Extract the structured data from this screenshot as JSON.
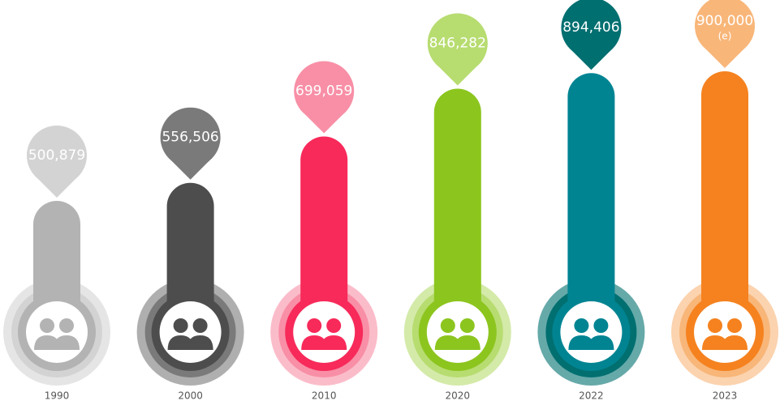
{
  "chart_data": {
    "type": "bar",
    "categories": [
      "1990",
      "2000",
      "2010",
      "2020",
      "2022",
      "2023"
    ],
    "values": [
      500879,
      556506,
      699059,
      846282,
      894406,
      900000
    ],
    "value_labels": [
      "500,879",
      "556,506",
      "699,059",
      "846,282",
      "894,406",
      "900,000"
    ],
    "notes": [
      null,
      null,
      null,
      null,
      null,
      "(e)"
    ],
    "colors": [
      "#b3b3b3",
      "#4d4d4d",
      "#f72a5a",
      "#8cc51e",
      "#008492",
      "#f5821f"
    ],
    "pin_colors": [
      "#d3d3d3",
      "#7a7a7a",
      "#f88fa6",
      "#b7dc70",
      "#006f70",
      "#f8b679"
    ]
  }
}
